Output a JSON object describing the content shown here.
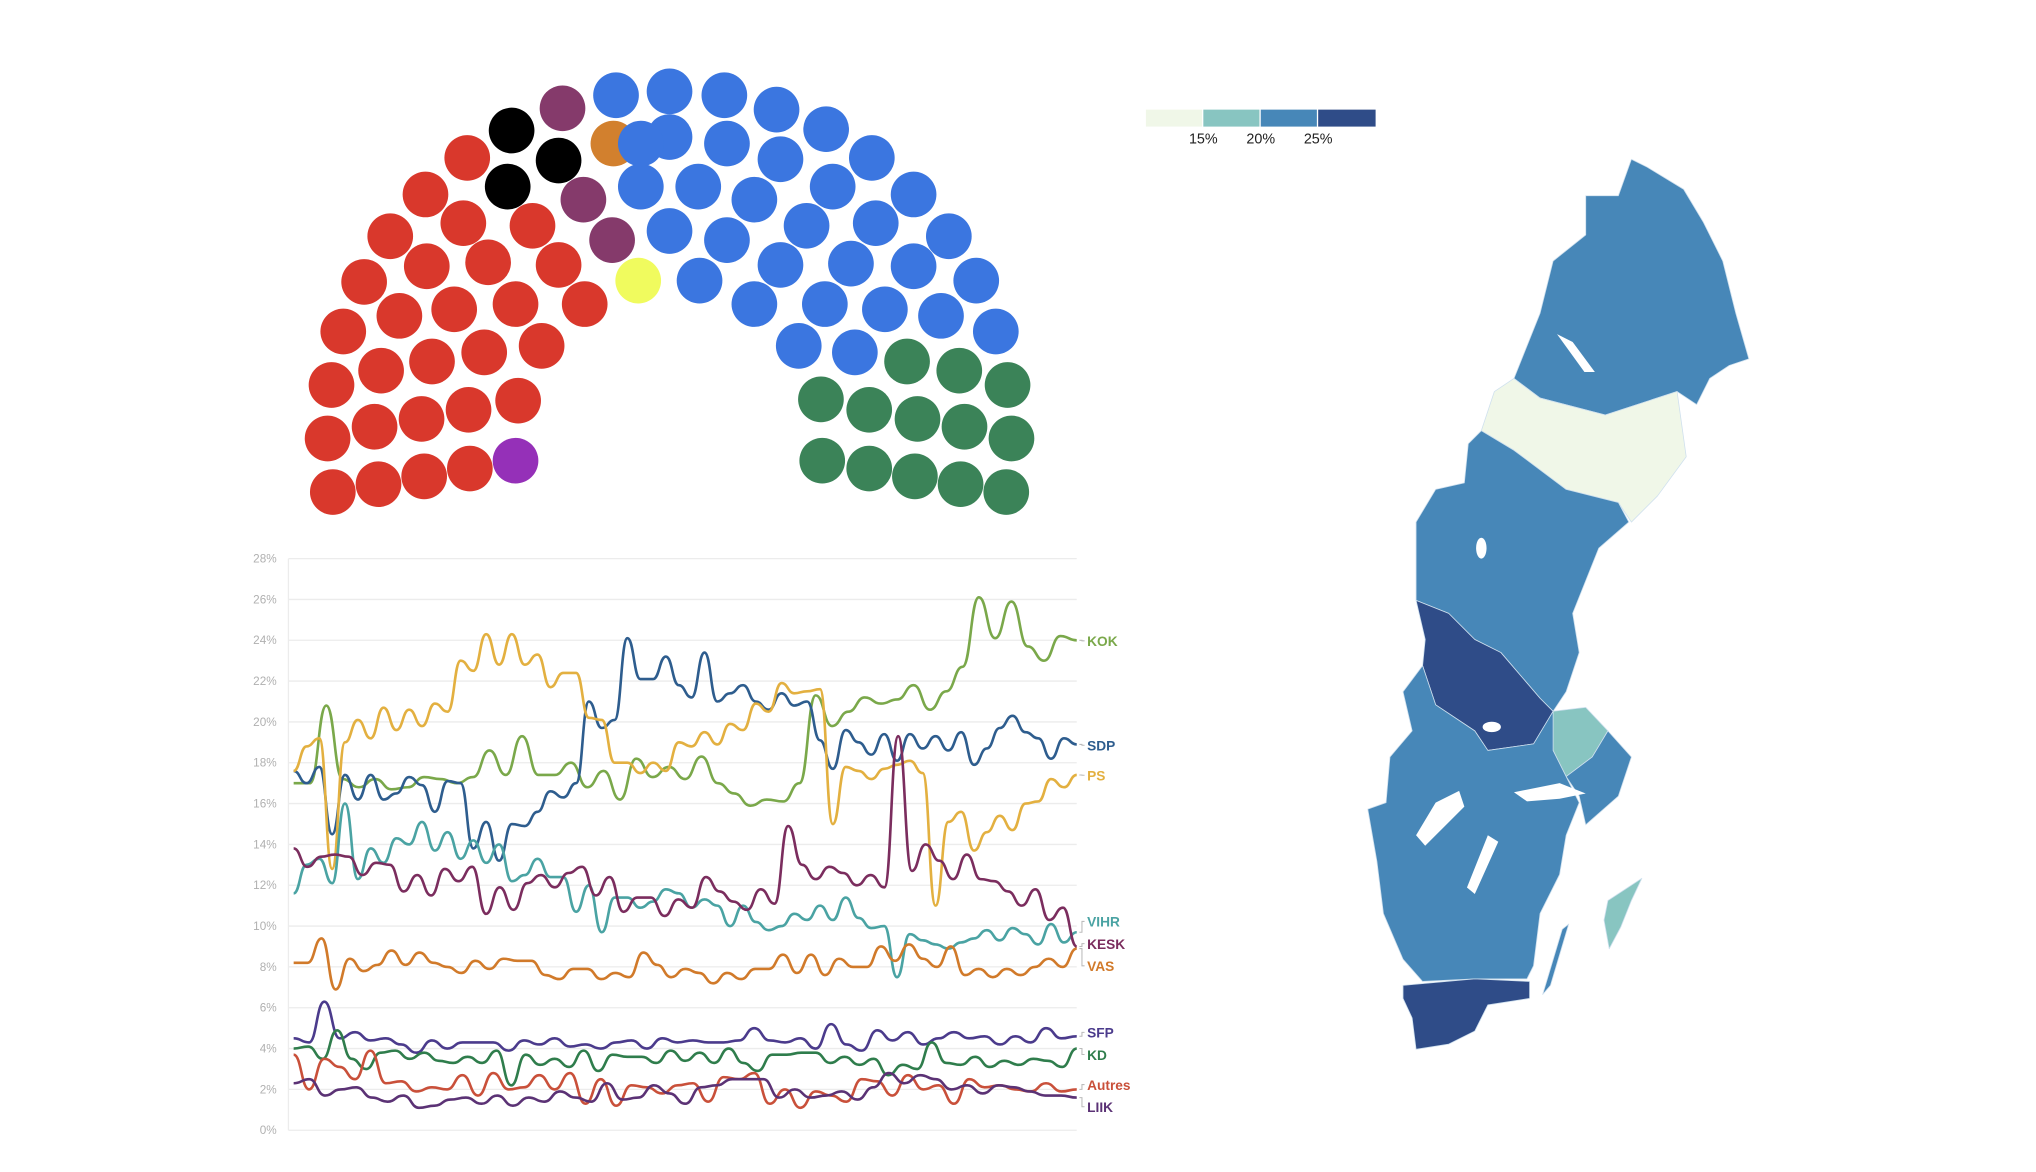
{
  "parliament": {
    "parties": [
      {
        "key": "red",
        "color": "#d9382c",
        "seats": 28
      },
      {
        "key": "violet",
        "color": "#9530b8",
        "seats": 1
      },
      {
        "key": "black",
        "color": "#000000",
        "seats": 3
      },
      {
        "key": "plum",
        "color": "#853a6b",
        "seats": 3
      },
      {
        "key": "orange",
        "color": "#d2802e",
        "seats": 1
      },
      {
        "key": "yellow",
        "color": "#f0fb5e",
        "seats": 1
      },
      {
        "key": "blue",
        "color": "#3b76e0",
        "seats": 32
      },
      {
        "key": "green",
        "color": "#3b8358",
        "seats": 13
      }
    ]
  },
  "map_legend": {
    "colors": [
      "#f0f7e8",
      "#88c5c1",
      "#4787b8",
      "#2f4c88"
    ],
    "labels": [
      "15%",
      "20%",
      "25%"
    ]
  },
  "map_regions": [
    {
      "name": "norrbotten",
      "color": "#4787b8"
    },
    {
      "name": "vasterbotten",
      "color": "#f0f7e8"
    },
    {
      "name": "norrland-central",
      "color": "#4787b8"
    },
    {
      "name": "dalarna",
      "color": "#2f4c88"
    },
    {
      "name": "uppsala",
      "color": "#88c5c1"
    },
    {
      "name": "stockholm",
      "color": "#4787b8"
    },
    {
      "name": "gotaland-svealand",
      "color": "#4787b8"
    },
    {
      "name": "skane-blekinge",
      "color": "#2f4c88"
    },
    {
      "name": "oland",
      "color": "#4787b8"
    },
    {
      "name": "gotland",
      "color": "#88c5c1"
    }
  ],
  "chart_data": {
    "type": "line",
    "title": "",
    "xlabel": "",
    "ylabel": "",
    "ylim": [
      0,
      28
    ],
    "yticks": [
      "0%",
      "2%",
      "4%",
      "6%",
      "8%",
      "10%",
      "12%",
      "14%",
      "16%",
      "18%",
      "20%",
      "22%",
      "24%",
      "26%",
      "28%"
    ],
    "grid": true,
    "legend": "right (end labels)",
    "series": [
      {
        "name": "KOK",
        "color": "#7aa84a",
        "values": [
          17,
          17,
          20.8,
          17.2,
          16.8,
          17.2,
          16.7,
          16.8,
          17.3,
          17.2,
          17,
          17.3,
          18.6,
          17.4,
          19.3,
          17.4,
          17.4,
          18,
          16.8,
          17.6,
          16.2,
          18.2,
          17.3,
          17.8,
          17.2,
          18.3,
          17,
          16.5,
          15.9,
          16.2,
          16.1,
          17,
          21.3,
          19.8,
          20.5,
          21.2,
          20.9,
          21.1,
          21.8,
          20.6,
          21.5,
          22.7,
          26.1,
          24.1,
          25.9,
          23.7,
          23,
          24.2,
          24
        ]
      },
      {
        "name": "SDP",
        "color": "#2e5d8e",
        "values": [
          17.6,
          17,
          17.8,
          14.5,
          17.4,
          16.2,
          17.4,
          16.2,
          16.5,
          17.3,
          16.9,
          15.6,
          17.1,
          17,
          13.8,
          15.1,
          13.2,
          15,
          14.9,
          15.6,
          16.6,
          16.3,
          17,
          21,
          19.7,
          20.1,
          24.1,
          22.1,
          22.1,
          23.2,
          21.8,
          21.2,
          23.4,
          21,
          21.4,
          21.8,
          21,
          20.6,
          21.4,
          20.8,
          21,
          19.1,
          17.7,
          19.6,
          19,
          18.4,
          19.4,
          18.1,
          19.4,
          18.7,
          19.3,
          18.6,
          19.5,
          17.9,
          18.7,
          19.7,
          20.3,
          19.5,
          19.2,
          18.2,
          19.2,
          18.9
        ]
      },
      {
        "name": "PS",
        "color": "#e3b040",
        "values": [
          17.6,
          18.8,
          19.2,
          12.8,
          19,
          20.1,
          19.2,
          20.7,
          19.6,
          20.6,
          19.8,
          20.9,
          20.5,
          23,
          22.5,
          24.3,
          22.8,
          24.3,
          22.8,
          23.3,
          21.7,
          22.4,
          22.4,
          20.2,
          20.1,
          18,
          18,
          17.5,
          18,
          17.6,
          19,
          18.8,
          19.5,
          18.9,
          19.9,
          19.6,
          20.9,
          20.5,
          21.9,
          21.4,
          21.5,
          21.6,
          15,
          17.8,
          17.6,
          17.2,
          17.7,
          17.9,
          18.1,
          17.5,
          11,
          15.1,
          15.6,
          13.7,
          14.6,
          15.4,
          14.7,
          16,
          16.1,
          17.2,
          16.8,
          17.4
        ]
      },
      {
        "name": "VIHR",
        "color": "#4aa3a3",
        "values": [
          11.6,
          13,
          13.3,
          12.1,
          16,
          12.3,
          13.8,
          13.1,
          14.3,
          14,
          15.1,
          13.7,
          14.6,
          13.3,
          14.2,
          13.1,
          14,
          12.2,
          12.5,
          13.3,
          12.4,
          12.4,
          10.7,
          12,
          9.7,
          11.4,
          11.4,
          10.9,
          11.2,
          11.8,
          11.6,
          10.9,
          11.3,
          11,
          10,
          11,
          10.2,
          9.8,
          10,
          10.6,
          10.3,
          11,
          10.3,
          11.4,
          10.4,
          9.9,
          10,
          7.5,
          9.6,
          9.3,
          9.1,
          8.9,
          9.2,
          9.4,
          9.8,
          9.3,
          9.9,
          9.6,
          9.1,
          10.1,
          9.2,
          9.7
        ]
      },
      {
        "name": "KESK",
        "color": "#7b2d5e",
        "values": [
          13.8,
          12.9,
          13.4,
          13.5,
          13.4,
          12.5,
          13.1,
          13,
          11.7,
          12.5,
          11.5,
          12.8,
          12.2,
          12.9,
          10.6,
          11.9,
          10.8,
          12.1,
          12.5,
          11.9,
          12.6,
          12.9,
          11.5,
          12.4,
          10.7,
          11.4,
          11.4,
          10.5,
          11.3,
          10.9,
          12.4,
          11.7,
          11.2,
          10.8,
          11.8,
          11.1,
          14.9,
          13,
          12.3,
          12.9,
          12.6,
          12,
          12.5,
          11.9,
          19.3,
          12.7,
          14,
          13.2,
          12.3,
          13.5,
          12.3,
          12.2,
          11.7,
          11,
          11.8,
          10.3,
          10.9,
          9
        ]
      },
      {
        "name": "VAS",
        "color": "#d17a2a",
        "values": [
          8.2,
          8.2,
          9.4,
          6.9,
          8.4,
          7.8,
          8.1,
          8.8,
          8.1,
          8.7,
          8.2,
          8,
          7.7,
          8.3,
          7.9,
          8.4,
          8.3,
          8.3,
          7.6,
          7.4,
          7.9,
          7.9,
          7.4,
          7.7,
          7.5,
          8.7,
          8.1,
          7.5,
          7.9,
          7.7,
          7.2,
          7.7,
          7.4,
          7.9,
          7.9,
          8.6,
          7.7,
          8.6,
          7.6,
          8.4,
          8,
          8,
          9,
          8.3,
          9.1,
          8.4,
          8,
          9,
          7.6,
          7.9,
          7.5,
          7.9,
          7.6,
          8,
          8.4,
          8,
          8.9
        ]
      },
      {
        "name": "SFP",
        "color": "#4b3b8c",
        "values": [
          4.5,
          4.3,
          6.3,
          4.5,
          4.8,
          4.4,
          4.5,
          4.2,
          3.8,
          4.4,
          4,
          4.3,
          4.3,
          4.3,
          3.9,
          4.4,
          4.2,
          4.5,
          4.1,
          4.2,
          4,
          4.3,
          4.4,
          4,
          4.5,
          4.3,
          4.4,
          4.3,
          4.3,
          4.4,
          5,
          4.4,
          4.3,
          4.5,
          4,
          5.2,
          4.2,
          3.9,
          4.9,
          4.4,
          4.8,
          4.2,
          4.5,
          4.8,
          4.5,
          4.6,
          4.2,
          4.6,
          4.3,
          5,
          4.5,
          4.6
        ]
      },
      {
        "name": "KD",
        "color": "#2f7d4c",
        "values": [
          4,
          4.1,
          3.5,
          4.9,
          3.5,
          3,
          3.8,
          3.9,
          3.5,
          3.8,
          3.4,
          3.3,
          3.6,
          3.3,
          3.9,
          2.2,
          3.7,
          3.2,
          3.5,
          3.1,
          3.9,
          2.9,
          3.7,
          3.6,
          3.6,
          3.3,
          3.9,
          3.4,
          3.8,
          3.3,
          4,
          3.3,
          2.9,
          3.7,
          3.7,
          3.8,
          3.8,
          3.3,
          3.6,
          3.2,
          3.5,
          2.7,
          3.2,
          3,
          4.3,
          3.3,
          3.2,
          3.6,
          3.1,
          3.4,
          3.2,
          3.5,
          3.4,
          3.1,
          4
        ]
      },
      {
        "name": "Autres",
        "color": "#c9503a",
        "values": [
          3.7,
          2,
          3.5,
          3.1,
          2.5,
          3.9,
          2.3,
          2.4,
          1.9,
          2.1,
          2,
          2.7,
          1.7,
          2.8,
          2,
          2.1,
          2.7,
          2,
          2.8,
          1.3,
          2.5,
          1.2,
          2.2,
          2.1,
          1.8,
          2.2,
          2.3,
          1.4,
          2.6,
          2.5,
          2.8,
          1.3,
          2,
          1.1,
          1.9,
          1.7,
          1.4,
          2.5,
          2.4,
          1.7,
          2.7,
          2,
          2.2,
          1.3,
          2.5,
          2.1,
          2.2,
          2,
          1.9,
          2.3,
          1.9,
          2
        ]
      },
      {
        "name": "LIIK",
        "color": "#5b3275",
        "values": [
          2.3,
          2.5,
          1.7,
          2,
          2.1,
          1.6,
          1.4,
          1.7,
          1.1,
          1.2,
          1.5,
          1.6,
          1.3,
          1.7,
          1.2,
          1.6,
          1.4,
          1.9,
          1.6,
          1.4,
          2.3,
          1.5,
          1.6,
          2.2,
          1.8,
          1.3,
          2.1,
          2.2,
          2.5,
          2.5,
          2.5,
          1.6,
          2,
          1.6,
          1.7,
          1.9,
          1.5,
          2.1,
          2.8,
          2.3,
          2.7,
          2.5,
          2,
          2.2,
          1.8,
          2.2,
          2.1,
          1.9,
          1.7,
          1.7,
          1.6
        ]
      }
    ]
  }
}
